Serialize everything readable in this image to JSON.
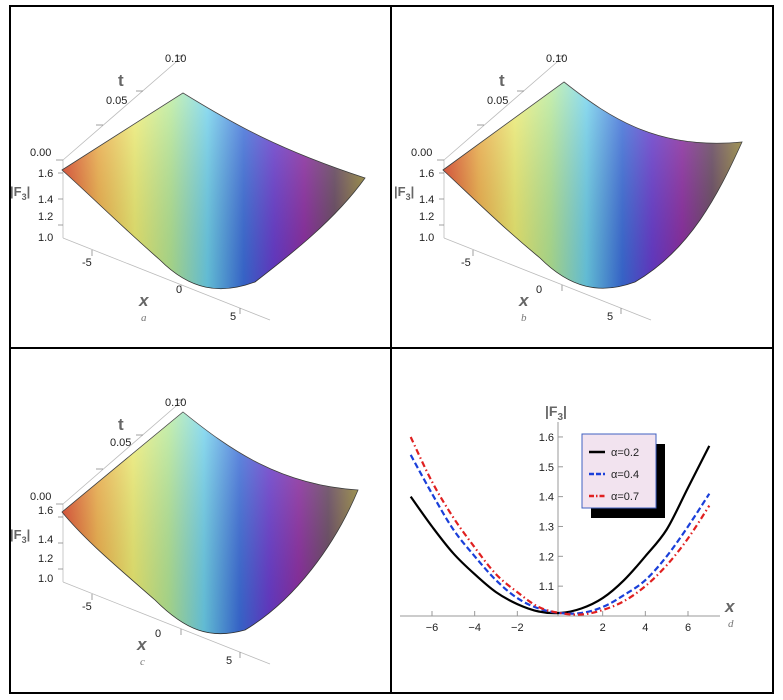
{
  "panels": [
    {
      "sublabel": "a",
      "t_label": "t",
      "x_label": "x",
      "z_label_main": "|F",
      "z_label_sub": "3",
      "z_label_end": "|",
      "t_ticks": [
        "0.00",
        "0.05",
        "0.10"
      ],
      "z_ticks": [
        "1.6",
        "1.4",
        "1.2",
        "1.0"
      ],
      "x_ticks": [
        "-5",
        "0",
        "5"
      ]
    },
    {
      "sublabel": "b",
      "t_label": "t",
      "x_label": "x",
      "z_label_main": "|F",
      "z_label_sub": "3",
      "z_label_end": "|",
      "t_ticks": [
        "0.00",
        "0.05",
        "0.10"
      ],
      "z_ticks": [
        "1.6",
        "1.4",
        "1.2",
        "1.0"
      ],
      "x_ticks": [
        "-5",
        "0",
        "5"
      ]
    },
    {
      "sublabel": "c",
      "t_label": "t",
      "x_label": "x",
      "z_label_main": "|F",
      "z_label_sub": "3",
      "z_label_end": "|",
      "t_ticks": [
        "0.00",
        "0.05",
        "0.10"
      ],
      "z_ticks": [
        "1.6",
        "1.4",
        "1.2",
        "1.0"
      ],
      "x_ticks": [
        "-5",
        "0",
        "5"
      ]
    }
  ],
  "chart_data": [
    {
      "type": "surface",
      "panel": "a",
      "xlim": [
        -7,
        7
      ],
      "tlim": [
        0,
        0.1
      ],
      "zlim": [
        1.0,
        1.6
      ]
    },
    {
      "type": "surface",
      "panel": "b",
      "xlim": [
        -7,
        7
      ],
      "tlim": [
        0,
        0.1
      ],
      "zlim": [
        1.0,
        1.6
      ]
    },
    {
      "type": "surface",
      "panel": "c",
      "xlim": [
        -7,
        7
      ],
      "tlim": [
        0,
        0.1
      ],
      "zlim": [
        1.0,
        1.6
      ]
    },
    {
      "type": "line",
      "panel": "d",
      "sublabel": "d",
      "xlabel": "x",
      "ylabel_main": "|F",
      "ylabel_sub": "3",
      "ylabel_end": "|",
      "xlim": [
        -7.5,
        7.5
      ],
      "ylim": [
        1.0,
        1.63
      ],
      "x_ticks": [
        -6,
        -4,
        -2,
        2,
        4,
        6
      ],
      "x_tick_labels": [
        "−6",
        "−4",
        "−2",
        "2",
        "4",
        "6"
      ],
      "y_ticks": [
        1.1,
        1.2,
        1.3,
        1.4,
        1.5,
        1.6
      ],
      "y_tick_labels": [
        "1.1",
        "1.2",
        "1.3",
        "1.4",
        "1.5",
        "1.6"
      ],
      "x": [
        -7,
        -6,
        -5,
        -4,
        -3,
        -2,
        -1,
        0,
        1,
        2,
        3,
        4,
        5,
        6,
        7
      ],
      "series": [
        {
          "name": "α=0.2",
          "color": "#000000",
          "style": "solid",
          "values": [
            1.4,
            1.3,
            1.21,
            1.14,
            1.08,
            1.04,
            1.015,
            1.01,
            1.025,
            1.06,
            1.12,
            1.2,
            1.29,
            1.43,
            1.57
          ]
        },
        {
          "name": "α=0.4",
          "color": "#1a3fd9",
          "style": "dashed",
          "values": [
            1.54,
            1.41,
            1.29,
            1.2,
            1.12,
            1.06,
            1.025,
            1.01,
            1.01,
            1.03,
            1.07,
            1.12,
            1.2,
            1.3,
            1.41
          ]
        },
        {
          "name": "α=0.7",
          "color": "#e02020",
          "style": "dashdot",
          "values": [
            1.6,
            1.45,
            1.33,
            1.23,
            1.14,
            1.08,
            1.03,
            1.01,
            1.005,
            1.02,
            1.05,
            1.1,
            1.17,
            1.26,
            1.37
          ]
        }
      ],
      "legend": "top-right"
    }
  ]
}
